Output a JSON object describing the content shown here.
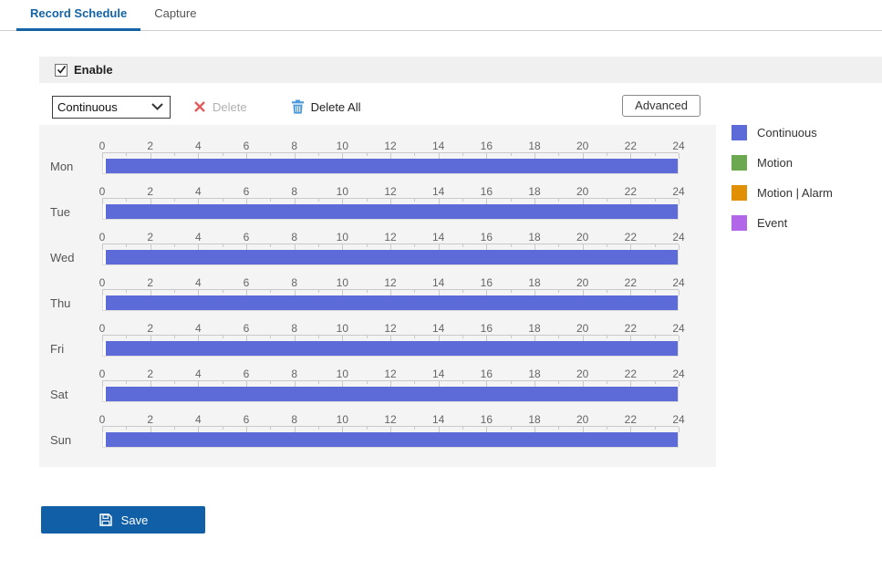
{
  "tabs": {
    "record_schedule": "Record Schedule",
    "capture": "Capture"
  },
  "enable": {
    "label": "Enable",
    "checked": true
  },
  "toolbar": {
    "record_type_selected": "Continuous",
    "delete_label": "Delete",
    "delete_all_label": "Delete All",
    "advanced_label": "Advanced"
  },
  "legend": [
    {
      "label": "Continuous",
      "color": "#5c6bd8"
    },
    {
      "label": "Motion",
      "color": "#6ba84f"
    },
    {
      "label": "Motion | Alarm",
      "color": "#e18f05"
    },
    {
      "label": "Event",
      "color": "#b266e8"
    }
  ],
  "schedule": {
    "days": [
      "Mon",
      "Tue",
      "Wed",
      "Thu",
      "Fri",
      "Sat",
      "Sun"
    ],
    "hours_total": 24,
    "hour_labels": [
      0,
      2,
      4,
      6,
      8,
      10,
      12,
      14,
      16,
      18,
      20,
      22,
      24
    ],
    "rows": [
      {
        "day": "Mon",
        "segments": [
          {
            "type": "Continuous",
            "start": 0,
            "end": 24
          }
        ]
      },
      {
        "day": "Tue",
        "segments": [
          {
            "type": "Continuous",
            "start": 0,
            "end": 24
          }
        ]
      },
      {
        "day": "Wed",
        "segments": [
          {
            "type": "Continuous",
            "start": 0,
            "end": 24
          }
        ]
      },
      {
        "day": "Thu",
        "segments": [
          {
            "type": "Continuous",
            "start": 0,
            "end": 24
          }
        ]
      },
      {
        "day": "Fri",
        "segments": [
          {
            "type": "Continuous",
            "start": 0,
            "end": 24
          }
        ]
      },
      {
        "day": "Sat",
        "segments": [
          {
            "type": "Continuous",
            "start": 0,
            "end": 24
          }
        ]
      },
      {
        "day": "Sun",
        "segments": [
          {
            "type": "Continuous",
            "start": 0,
            "end": 24
          }
        ]
      }
    ]
  },
  "save": {
    "label": "Save"
  },
  "colors": {
    "accent_blue": "#1464a5",
    "save_button_bg": "#115fa6",
    "delete_x": "#e15b5b",
    "trash_blue": "#4d9bdb",
    "panel_bg": "#f4f4f4",
    "enable_bar_bg": "#f0f0f0"
  }
}
